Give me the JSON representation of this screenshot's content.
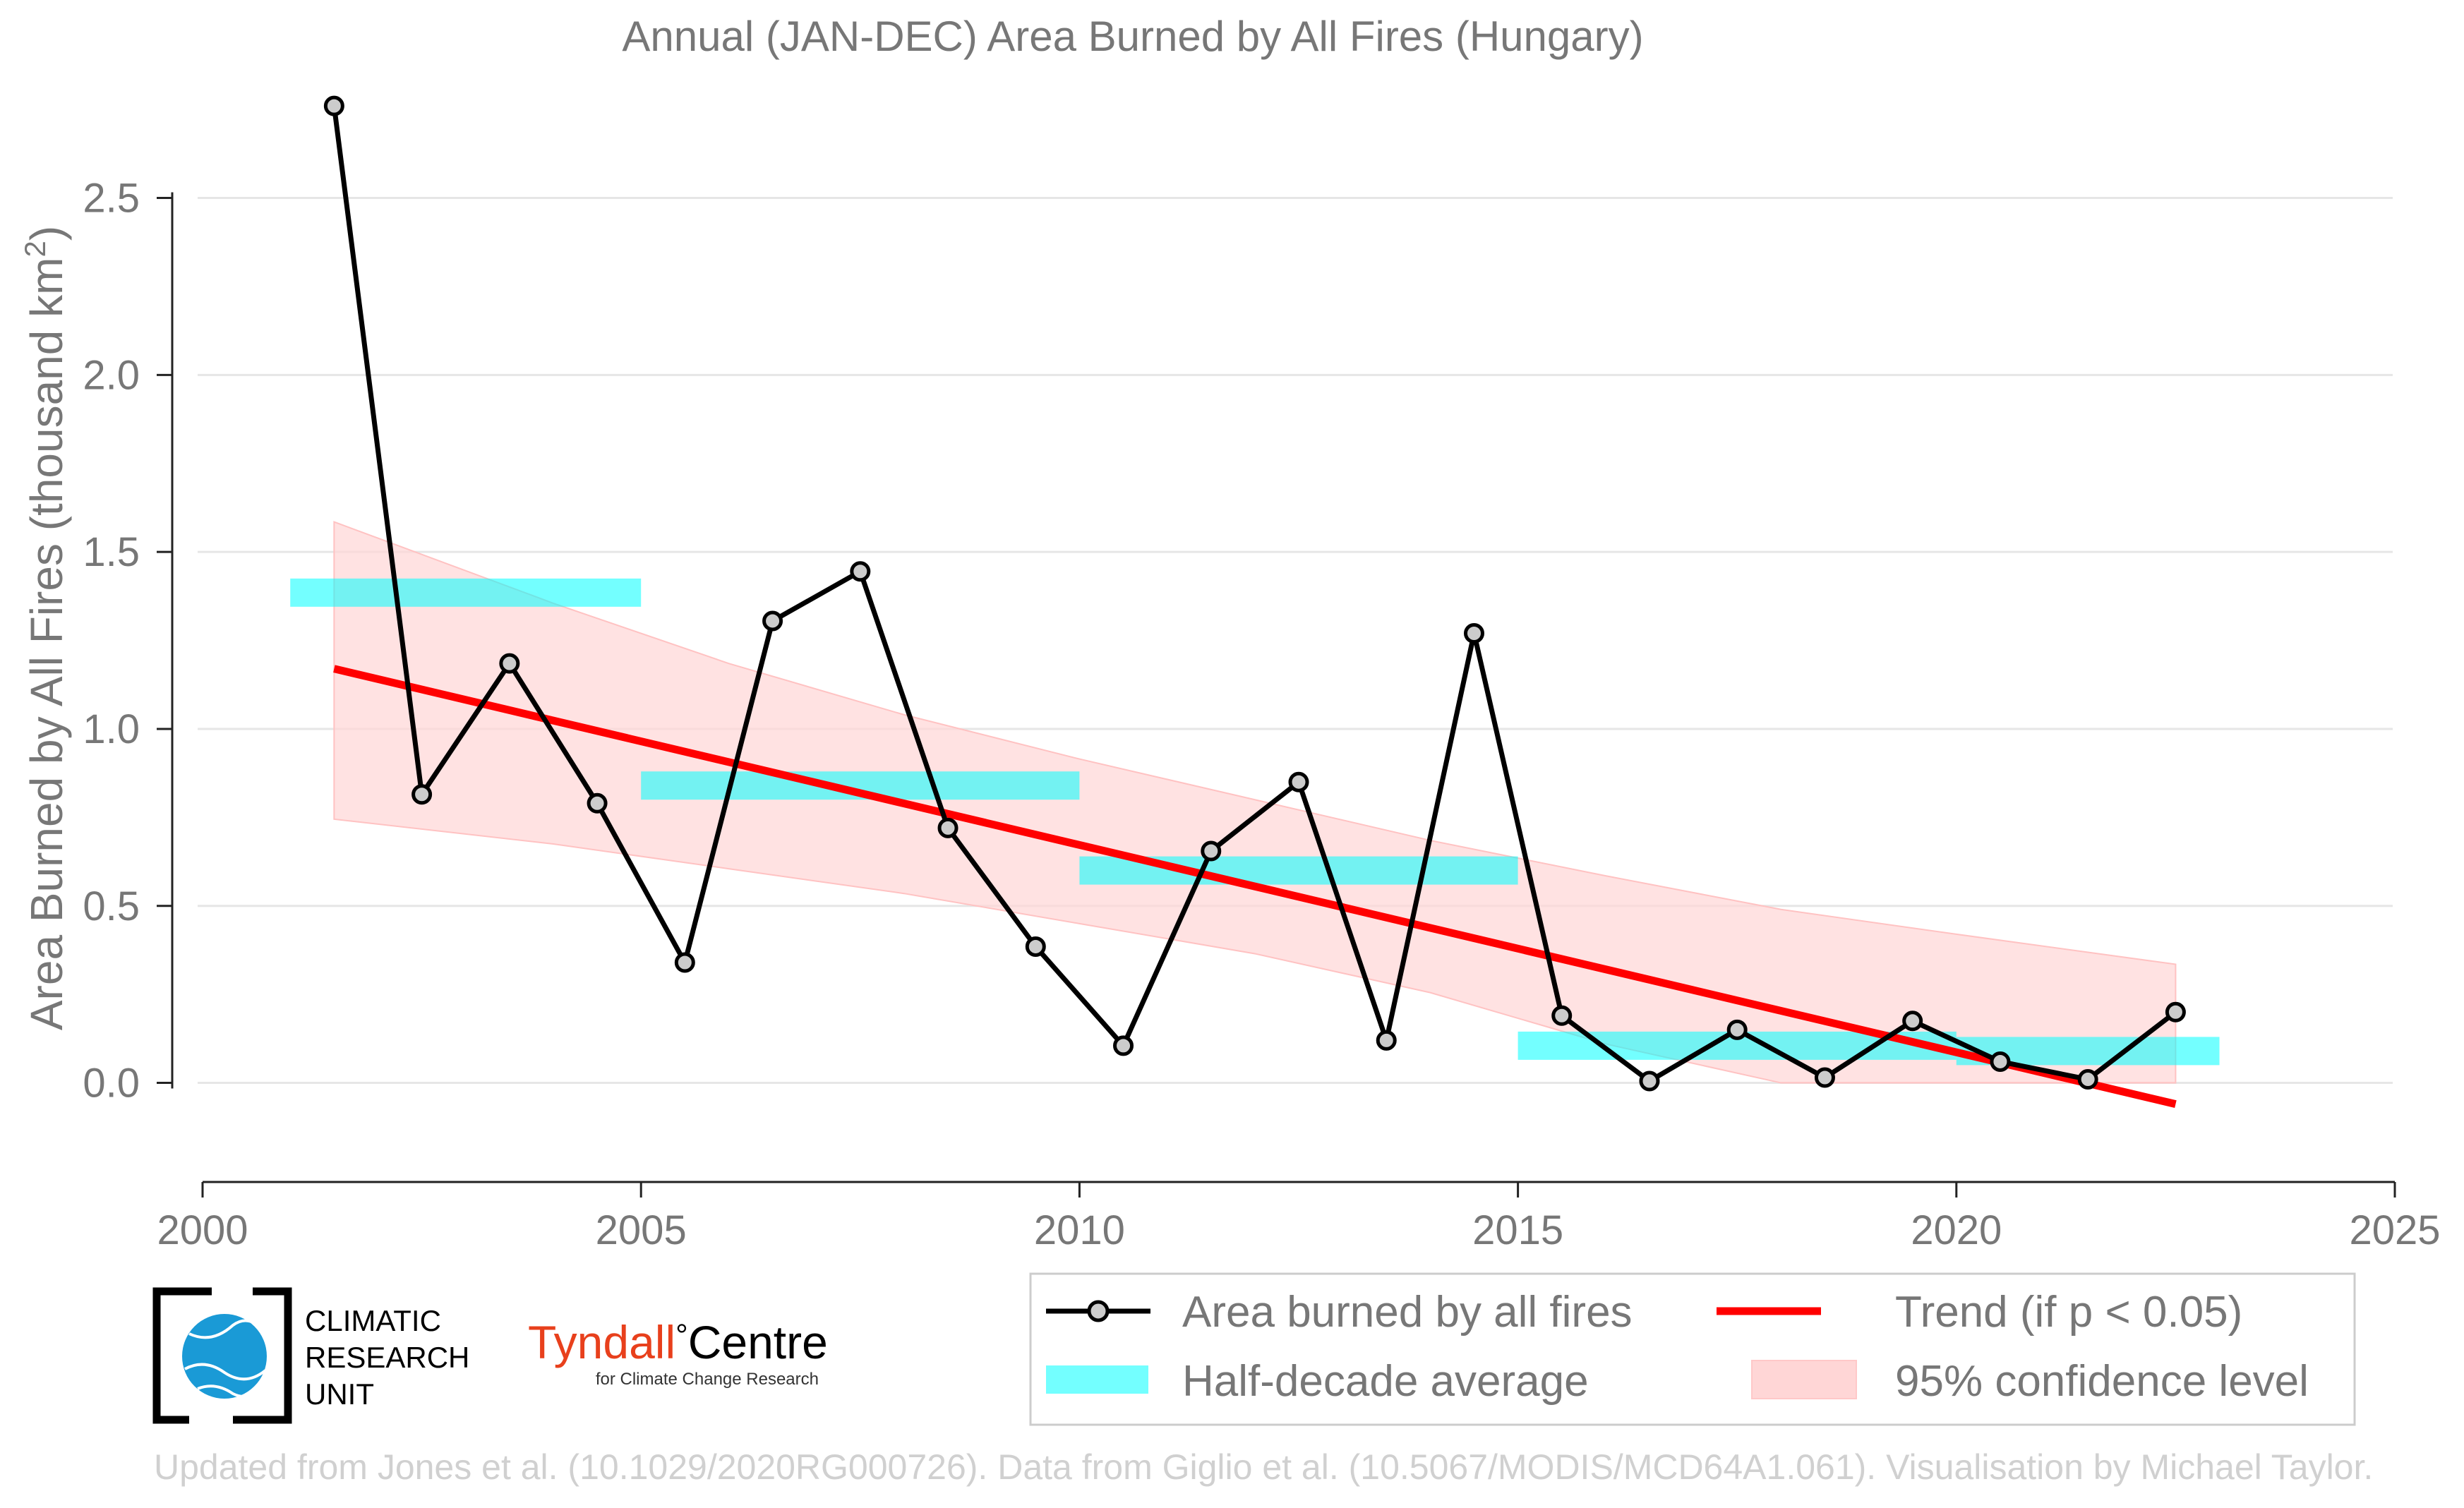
{
  "chart_data": {
    "type": "line",
    "title": "Annual (JAN-DEC) Area Burned by All Fires (Hungary)",
    "xlabel": "",
    "ylabel": "Area Burned by All Fires (thousand km",
    "ylabel_sup": "2",
    "ylabel_close": ")",
    "xlim": [
      2000,
      2025
    ],
    "ylim": [
      -0.28,
      2.85
    ],
    "xticks": [
      2000,
      2005,
      2010,
      2015,
      2020,
      2025
    ],
    "yticks": [
      {
        "value": 0.0,
        "label": "0.0"
      },
      {
        "value": 0.5,
        "label": "0.5"
      },
      {
        "value": 1.0,
        "label": "1.0"
      },
      {
        "value": 1.5,
        "label": "1.5"
      },
      {
        "value": 2.0,
        "label": "2.0"
      },
      {
        "value": 2.5,
        "label": "2.5"
      }
    ],
    "grid": "horizontal",
    "series": [
      {
        "name": "Area burned by all fires",
        "kind": "line-markers",
        "color": "#000000",
        "marker_fill": "#cccccc",
        "x": [
          2001.5,
          2002.5,
          2003.5,
          2004.5,
          2005.5,
          2006.5,
          2007.5,
          2008.5,
          2009.5,
          2010.5,
          2011.5,
          2012.5,
          2013.5,
          2014.5,
          2015.5,
          2016.5,
          2017.5,
          2018.5,
          2019.5,
          2020.5,
          2021.5,
          2022.5
        ],
        "y": [
          2.76,
          0.815,
          1.185,
          0.79,
          0.34,
          1.305,
          1.445,
          0.72,
          0.385,
          0.105,
          0.655,
          0.85,
          0.12,
          1.27,
          0.19,
          0.005,
          0.15,
          0.015,
          0.175,
          0.06,
          0.01,
          0.2
        ]
      },
      {
        "name": "Half-decade average",
        "kind": "segments",
        "color": "#00ffff",
        "opacity": 0.55,
        "segments": [
          {
            "x0": 2001,
            "x1": 2005,
            "y": 1.385
          },
          {
            "x0": 2005,
            "x1": 2010,
            "y": 0.84
          },
          {
            "x0": 2010,
            "x1": 2015,
            "y": 0.6
          },
          {
            "x0": 2015,
            "x1": 2020,
            "y": 0.105
          },
          {
            "x0": 2020,
            "x1": 2023,
            "y": 0.09
          }
        ]
      },
      {
        "name": "Trend (if p < 0.05)",
        "kind": "trend",
        "color": "#ff0000",
        "x": [
          2001.5,
          2022.5
        ],
        "y": [
          1.17,
          -0.06
        ]
      },
      {
        "name": "95% confidence level",
        "kind": "band",
        "color": "#ffd6d6",
        "x": [
          2001.5,
          2004,
          2006,
          2008,
          2010,
          2012,
          2014,
          2016,
          2018,
          2020,
          2022.5
        ],
        "upper": [
          1.585,
          1.355,
          1.185,
          1.04,
          0.915,
          0.8,
          0.685,
          0.585,
          0.49,
          0.42,
          0.335
        ],
        "lower": [
          0.745,
          0.675,
          0.605,
          0.535,
          0.45,
          0.365,
          0.255,
          0.11,
          0.0,
          0.0,
          0.0
        ]
      }
    ],
    "legend": {
      "placement": "bottom-right",
      "entries": [
        {
          "label": "Area burned by all fires",
          "kind": "line-markers"
        },
        {
          "label": "Trend (if p < 0.05)",
          "kind": "trend"
        },
        {
          "label": "Half-decade average",
          "kind": "segments"
        },
        {
          "label": "95% confidence level",
          "kind": "band"
        }
      ]
    }
  },
  "logos": {
    "cru_lines": [
      "CLIMATIC",
      "RESEARCH",
      "UNIT"
    ],
    "tyndall_main": "Tyndall",
    "tyndall_degree": "°",
    "tyndall_centre": "Centre",
    "tyndall_sub": "for Climate Change Research"
  },
  "footer": "Updated from Jones et al. (10.1029/2020RG000726). Data from Giglio et al. (10.5067/MODIS/MCD64A1.061). Visualisation by Michael Taylor.",
  "colors": {
    "axis_text": "#777777",
    "grid": "#e6e6e6",
    "axis_line": "#222222",
    "footer": "#d0d0d0",
    "tyndall": "#e8401c",
    "cru_globe": "#1a9ad6"
  }
}
